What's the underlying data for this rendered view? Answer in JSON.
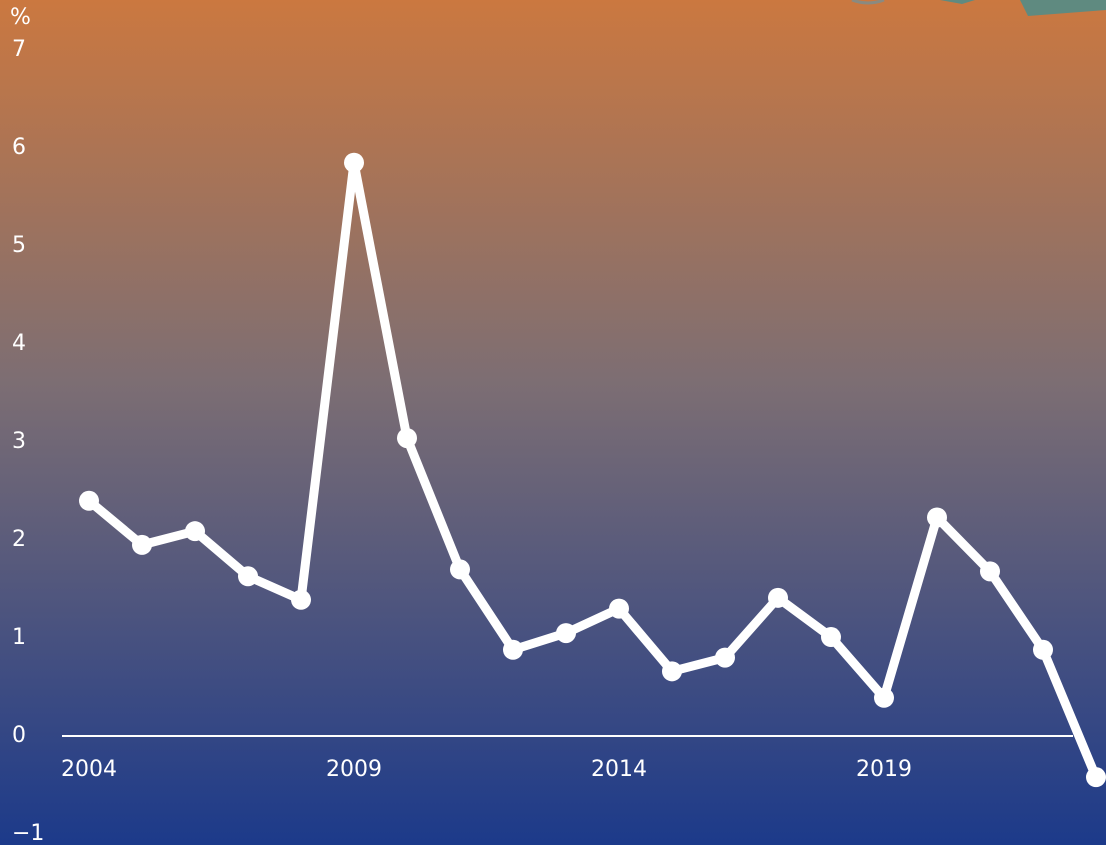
{
  "chart_data": {
    "type": "line",
    "unit": "%",
    "x": [
      2004,
      2005,
      2006,
      2007,
      2008,
      2009,
      2010,
      2011,
      2012,
      2013,
      2014,
      2015,
      2016,
      2017,
      2018,
      2019,
      2020,
      2021,
      2022,
      2023
    ],
    "series": [
      {
        "color": "#ffffff",
        "values": [
          2.4,
          1.95,
          2.09,
          1.63,
          1.39,
          5.85,
          3.04,
          1.7,
          0.88,
          1.05,
          1.3,
          0.66,
          0.8,
          1.41,
          1.01,
          0.39,
          2.23,
          1.68,
          0.88,
          -0.42
        ]
      }
    ],
    "xlim": [
      2004,
      2023
    ],
    "xticks": [
      2004,
      2009,
      2014,
      2019
    ],
    "ylim": [
      -1,
      7
    ],
    "yticks": [
      7,
      6,
      5,
      4,
      3,
      2,
      1,
      0,
      {
        "value": -1,
        "label": "−1"
      }
    ]
  }
}
